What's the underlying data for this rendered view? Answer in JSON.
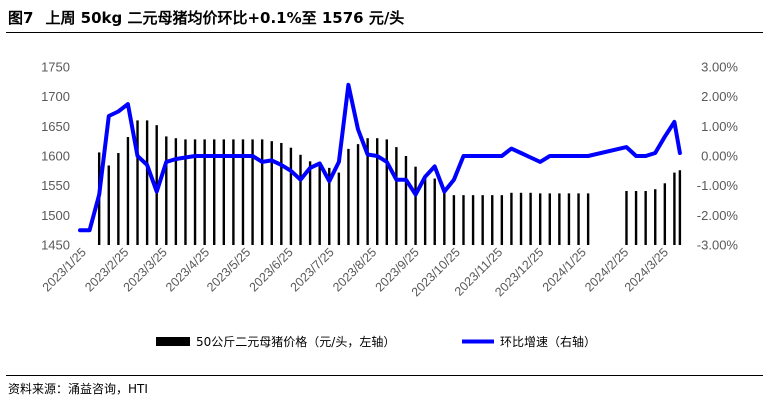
{
  "header": {
    "figure_no": "图7",
    "title": "上周 50kg 二元母猪均价环比+0.1%至 1576 元/头"
  },
  "footer": {
    "source": "资料来源：涌益咨询，HTI"
  },
  "colors": {
    "bar": "#000000",
    "line": "#0000ff",
    "axis_text": "#595959"
  },
  "chart_data": {
    "type": "bar+line",
    "legend_position": "bottom",
    "grid": false,
    "left_axis": {
      "ylim": [
        1450,
        1750
      ],
      "ticks": [
        1450,
        1500,
        1550,
        1600,
        1650,
        1700,
        1750
      ],
      "tick_labels": [
        "1450",
        "1500",
        "1550",
        "1600",
        "1650",
        "1700",
        "1750"
      ]
    },
    "right_axis": {
      "ylim": [
        -3.0,
        3.0
      ],
      "ticks": [
        -3,
        -2,
        -1,
        0,
        1,
        2,
        3
      ],
      "tick_labels": [
        "-3.00%",
        "-2.00%",
        "-1.00%",
        "0.00%",
        "1.00%",
        "2.00%",
        "3.00%"
      ]
    },
    "x_range": [
      "2023-01-20",
      "2024-04-05"
    ],
    "x_tick_labels": [
      {
        "date": "2023-01-25",
        "label": "2023/1/25"
      },
      {
        "date": "2023-02-25",
        "label": "2023/2/25"
      },
      {
        "date": "2023-03-25",
        "label": "2023/3/25"
      },
      {
        "date": "2023-04-25",
        "label": "2023/4/25"
      },
      {
        "date": "2023-05-25",
        "label": "2023/5/25"
      },
      {
        "date": "2023-06-25",
        "label": "2023/6/25"
      },
      {
        "date": "2023-07-25",
        "label": "2023/7/25"
      },
      {
        "date": "2023-08-25",
        "label": "2023/8/25"
      },
      {
        "date": "2023-09-25",
        "label": "2023/9/25"
      },
      {
        "date": "2023-10-25",
        "label": "2023/10/25"
      },
      {
        "date": "2023-11-25",
        "label": "2023/11/25"
      },
      {
        "date": "2023-12-25",
        "label": "2023/12/25"
      },
      {
        "date": "2024-01-25",
        "label": "2024/1/25"
      },
      {
        "date": "2024-02-25",
        "label": "2024/2/25"
      },
      {
        "date": "2024-03-25",
        "label": "2024/3/25"
      }
    ],
    "series": [
      {
        "name": "50公斤二元母猪价格（元/头，左轴）",
        "type": "bar",
        "axis": "left",
        "points": [
          {
            "x": "2023-02-03",
            "y": 1606
          },
          {
            "x": "2023-02-10",
            "y": 1584
          },
          {
            "x": "2023-02-17",
            "y": 1605
          },
          {
            "x": "2023-02-24",
            "y": 1632
          },
          {
            "x": "2023-03-03",
            "y": 1660
          },
          {
            "x": "2023-03-10",
            "y": 1660
          },
          {
            "x": "2023-03-17",
            "y": 1652
          },
          {
            "x": "2023-03-24",
            "y": 1633
          },
          {
            "x": "2023-03-31",
            "y": 1630
          },
          {
            "x": "2023-04-07",
            "y": 1628
          },
          {
            "x": "2023-04-14",
            "y": 1628
          },
          {
            "x": "2023-04-21",
            "y": 1628
          },
          {
            "x": "2023-04-28",
            "y": 1628
          },
          {
            "x": "2023-05-05",
            "y": 1628
          },
          {
            "x": "2023-05-12",
            "y": 1628
          },
          {
            "x": "2023-05-19",
            "y": 1628
          },
          {
            "x": "2023-05-26",
            "y": 1628
          },
          {
            "x": "2023-06-02",
            "y": 1628
          },
          {
            "x": "2023-06-09",
            "y": 1625
          },
          {
            "x": "2023-06-16",
            "y": 1622
          },
          {
            "x": "2023-06-23",
            "y": 1614
          },
          {
            "x": "2023-06-30",
            "y": 1602
          },
          {
            "x": "2023-07-07",
            "y": 1591
          },
          {
            "x": "2023-07-14",
            "y": 1585
          },
          {
            "x": "2023-07-21",
            "y": 1580
          },
          {
            "x": "2023-07-28",
            "y": 1572
          },
          {
            "x": "2023-08-04",
            "y": 1612
          },
          {
            "x": "2023-08-11",
            "y": 1620
          },
          {
            "x": "2023-08-18",
            "y": 1630
          },
          {
            "x": "2023-08-25",
            "y": 1630
          },
          {
            "x": "2023-09-01",
            "y": 1628
          },
          {
            "x": "2023-09-08",
            "y": 1615
          },
          {
            "x": "2023-09-15",
            "y": 1600
          },
          {
            "x": "2023-09-22",
            "y": 1582
          },
          {
            "x": "2023-09-29",
            "y": 1568
          },
          {
            "x": "2023-10-06",
            "y": 1562
          },
          {
            "x": "2023-10-13",
            "y": 1545
          },
          {
            "x": "2023-10-20",
            "y": 1534
          },
          {
            "x": "2023-10-27",
            "y": 1534
          },
          {
            "x": "2023-11-03",
            "y": 1534
          },
          {
            "x": "2023-11-10",
            "y": 1534
          },
          {
            "x": "2023-11-17",
            "y": 1534
          },
          {
            "x": "2023-11-24",
            "y": 1534
          },
          {
            "x": "2023-12-01",
            "y": 1538
          },
          {
            "x": "2023-12-08",
            "y": 1538
          },
          {
            "x": "2023-12-15",
            "y": 1538
          },
          {
            "x": "2023-12-22",
            "y": 1537
          },
          {
            "x": "2023-12-29",
            "y": 1537
          },
          {
            "x": "2024-01-05",
            "y": 1537
          },
          {
            "x": "2024-01-12",
            "y": 1537
          },
          {
            "x": "2024-01-19",
            "y": 1537
          },
          {
            "x": "2024-01-26",
            "y": 1537
          },
          {
            "x": "2024-02-23",
            "y": 1541
          },
          {
            "x": "2024-03-01",
            "y": 1541
          },
          {
            "x": "2024-03-08",
            "y": 1541
          },
          {
            "x": "2024-03-15",
            "y": 1544
          },
          {
            "x": "2024-03-22",
            "y": 1554
          },
          {
            "x": "2024-03-29",
            "y": 1572
          },
          {
            "x": "2024-04-02",
            "y": 1576
          }
        ]
      },
      {
        "name": "环比增速（右轴）",
        "type": "line",
        "axis": "right",
        "unit": "%",
        "points": [
          {
            "x": "2023-01-20",
            "y": -2.5
          },
          {
            "x": "2023-01-27",
            "y": -2.5
          },
          {
            "x": "2023-02-03",
            "y": -1.3
          },
          {
            "x": "2023-02-10",
            "y": 1.35
          },
          {
            "x": "2023-02-17",
            "y": 1.5
          },
          {
            "x": "2023-02-24",
            "y": 1.75
          },
          {
            "x": "2023-03-03",
            "y": 0.0
          },
          {
            "x": "2023-03-10",
            "y": -0.3
          },
          {
            "x": "2023-03-17",
            "y": -1.2
          },
          {
            "x": "2023-03-24",
            "y": -0.2
          },
          {
            "x": "2023-03-31",
            "y": -0.1
          },
          {
            "x": "2023-04-07",
            "y": -0.05
          },
          {
            "x": "2023-04-14",
            "y": 0.0
          },
          {
            "x": "2023-04-21",
            "y": 0.0
          },
          {
            "x": "2023-04-28",
            "y": 0.0
          },
          {
            "x": "2023-05-05",
            "y": 0.0
          },
          {
            "x": "2023-05-12",
            "y": 0.0
          },
          {
            "x": "2023-05-19",
            "y": 0.0
          },
          {
            "x": "2023-05-26",
            "y": 0.0
          },
          {
            "x": "2023-06-02",
            "y": -0.2
          },
          {
            "x": "2023-06-09",
            "y": -0.15
          },
          {
            "x": "2023-06-16",
            "y": -0.3
          },
          {
            "x": "2023-06-23",
            "y": -0.5
          },
          {
            "x": "2023-06-30",
            "y": -0.8
          },
          {
            "x": "2023-07-07",
            "y": -0.4
          },
          {
            "x": "2023-07-14",
            "y": -0.25
          },
          {
            "x": "2023-07-21",
            "y": -0.85
          },
          {
            "x": "2023-07-28",
            "y": -0.2
          },
          {
            "x": "2023-08-04",
            "y": 2.4
          },
          {
            "x": "2023-08-11",
            "y": 0.9
          },
          {
            "x": "2023-08-18",
            "y": 0.05
          },
          {
            "x": "2023-08-25",
            "y": 0.0
          },
          {
            "x": "2023-09-01",
            "y": -0.2
          },
          {
            "x": "2023-09-08",
            "y": -0.8
          },
          {
            "x": "2023-09-15",
            "y": -0.8
          },
          {
            "x": "2023-09-22",
            "y": -1.3
          },
          {
            "x": "2023-09-29",
            "y": -0.7
          },
          {
            "x": "2023-10-06",
            "y": -0.35
          },
          {
            "x": "2023-10-13",
            "y": -1.2
          },
          {
            "x": "2023-10-20",
            "y": -0.8
          },
          {
            "x": "2023-10-27",
            "y": 0.0
          },
          {
            "x": "2023-11-03",
            "y": 0.0
          },
          {
            "x": "2023-11-10",
            "y": 0.0
          },
          {
            "x": "2023-11-17",
            "y": 0.0
          },
          {
            "x": "2023-11-24",
            "y": 0.0
          },
          {
            "x": "2023-12-01",
            "y": 0.25
          },
          {
            "x": "2023-12-08",
            "y": 0.1
          },
          {
            "x": "2023-12-15",
            "y": -0.05
          },
          {
            "x": "2023-12-22",
            "y": -0.2
          },
          {
            "x": "2023-12-29",
            "y": 0.0
          },
          {
            "x": "2024-01-05",
            "y": 0.0
          },
          {
            "x": "2024-01-12",
            "y": 0.0
          },
          {
            "x": "2024-01-19",
            "y": 0.0
          },
          {
            "x": "2024-01-26",
            "y": 0.0
          },
          {
            "x": "2024-02-23",
            "y": 0.3
          },
          {
            "x": "2024-03-01",
            "y": 0.0
          },
          {
            "x": "2024-03-08",
            "y": 0.0
          },
          {
            "x": "2024-03-15",
            "y": 0.1
          },
          {
            "x": "2024-03-22",
            "y": 0.65
          },
          {
            "x": "2024-03-29",
            "y": 1.15
          },
          {
            "x": "2024-04-02",
            "y": 0.1
          }
        ]
      }
    ]
  }
}
